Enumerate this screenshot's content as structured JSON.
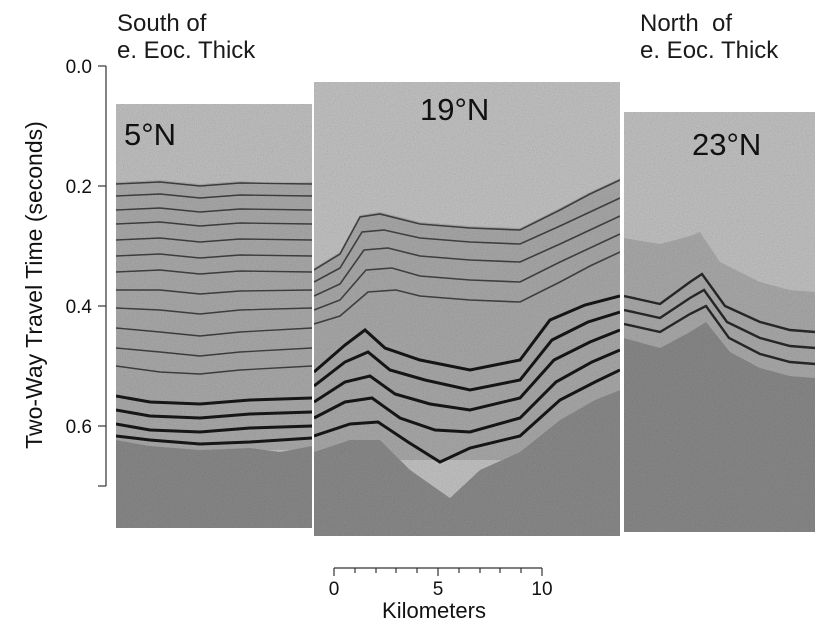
{
  "figure": {
    "y_axis": {
      "label": "Two-Way Travel Time (seconds)",
      "ticks": [
        "0.0",
        "0.2",
        "0.4",
        "0.6"
      ],
      "range": [
        0.0,
        0.7
      ]
    },
    "scale_bar": {
      "label": "Kilometers",
      "ticks": [
        "0",
        "5",
        "10"
      ],
      "range_km": [
        0,
        10
      ]
    },
    "annotations": {
      "south": "South of\ne. Eoc. Thick",
      "north": "North  of\ne. Eoc. Thick"
    },
    "profiles": [
      {
        "id": "south",
        "label": "5°N",
        "start_s": 0.07,
        "end_s": 0.77,
        "seafloor_s": 0.2,
        "basement_s": 0.6
      },
      {
        "id": "middle",
        "label": "19°N",
        "start_s": 0.03,
        "end_s": 0.78,
        "seafloor_s": 0.27,
        "basement_s": 0.5
      },
      {
        "id": "north",
        "label": "23°N",
        "start_s": 0.08,
        "end_s": 0.77,
        "seafloor_s": 0.32,
        "basement_s": 0.45
      }
    ],
    "colors": {
      "water": "#bdbdbd",
      "sediment": "#a9a9a9",
      "reflector": "#2b2b2b",
      "basement": "#8a8a8a",
      "axis": "#333333"
    }
  }
}
